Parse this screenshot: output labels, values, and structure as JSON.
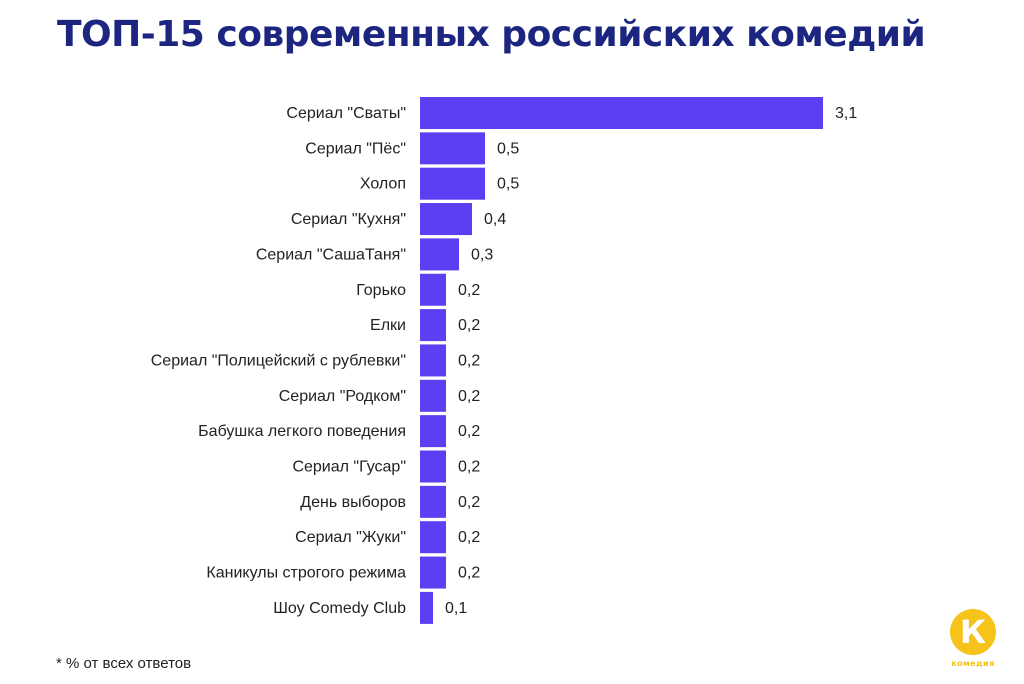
{
  "title": "ТОП-15 современных российских комедий",
  "footnote": "* % от всех ответов",
  "logo": {
    "letter": "К",
    "text": "комедия"
  },
  "colors": {
    "bar": "#5b3ff2",
    "title": "#1c2680",
    "logo": "#f6c31a"
  },
  "chart_data": {
    "type": "bar",
    "orientation": "horizontal",
    "categories": [
      "Сериал \"Сваты\"",
      "Сериал \"Пёс\"",
      "Холоп",
      "Сериал \"Кухня\"",
      "Сериал \"СашаТаня\"",
      "Горько",
      "Елки",
      "Сериал \"Полицейский с рублевки\"",
      "Сериал \"Родком\"",
      "Бабушка легкого поведения",
      "Сериал \"Гусар\"",
      "День выборов",
      "Сериал \"Жуки\"",
      "Каникулы строгого режима",
      "Шоу Comedy Club"
    ],
    "values": [
      3.1,
      0.5,
      0.5,
      0.4,
      0.3,
      0.2,
      0.2,
      0.2,
      0.2,
      0.2,
      0.2,
      0.2,
      0.2,
      0.2,
      0.1
    ],
    "labels": [
      "3,1",
      "0,5",
      "0,5",
      "0,4",
      "0,3",
      "0,2",
      "0,2",
      "0,2",
      "0,2",
      "0,2",
      "0,2",
      "0,2",
      "0,2",
      "0,2",
      "0,1"
    ],
    "grid": false,
    "legend": "none"
  }
}
